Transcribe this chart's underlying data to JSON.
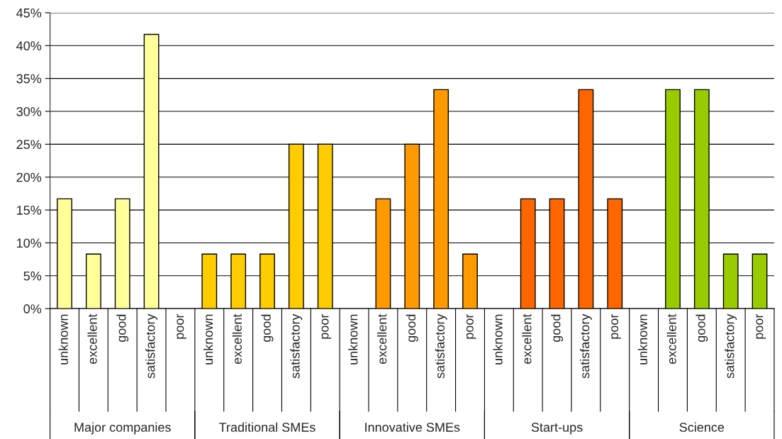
{
  "chart_data": {
    "type": "bar",
    "categories": [
      "unknown",
      "excellent",
      "good",
      "satisfactory",
      "poor",
      "unknown",
      "excellent",
      "good",
      "satisfactory",
      "poor",
      "unknown",
      "excellent",
      "good",
      "satisfactory",
      "poor",
      "unknown",
      "excellent",
      "good",
      "satisfactory",
      "poor",
      "unknown",
      "excellent",
      "good",
      "satisfactory",
      "poor"
    ],
    "values": [
      16.7,
      8.3,
      16.7,
      41.7,
      null,
      8.3,
      8.3,
      8.3,
      25,
      25,
      null,
      16.7,
      25,
      33.3,
      8.3,
      null,
      16.7,
      16.7,
      33.3,
      16.7,
      null,
      33.3,
      33.3,
      8.3,
      8.3
    ],
    "colors": [
      "#ffff99",
      "#ffff99",
      "#ffff99",
      "#ffff99",
      "#ffff99",
      "#ffcc00",
      "#ffcc00",
      "#ffcc00",
      "#ffcc00",
      "#ffcc00",
      "#ff9900",
      "#ff9900",
      "#ff9900",
      "#ff9900",
      "#ff9900",
      "#ff6600",
      "#ff6600",
      "#ff6600",
      "#ff6600",
      "#ff6600",
      "#99cc00",
      "#99cc00",
      "#99cc00",
      "#99cc00",
      "#99cc00"
    ],
    "annotations": [
      "Major companies",
      "Traditional SMEs",
      "Innovative SMEs",
      "Start-ups",
      "Science"
    ],
    "ylim": [
      0,
      45
    ],
    "yticks": [
      {
        "value": 0,
        "label": "0%"
      },
      {
        "value": 5,
        "label": "5%"
      },
      {
        "value": 10,
        "label": "10%"
      },
      {
        "value": 15,
        "label": "15%"
      },
      {
        "value": 20,
        "label": "20%"
      },
      {
        "value": 25,
        "label": "25%"
      },
      {
        "value": 30,
        "label": "30%"
      },
      {
        "value": 35,
        "label": "35%"
      },
      {
        "value": 40,
        "label": "40%"
      },
      {
        "value": 45,
        "label": "45%"
      }
    ],
    "grid": "y"
  }
}
